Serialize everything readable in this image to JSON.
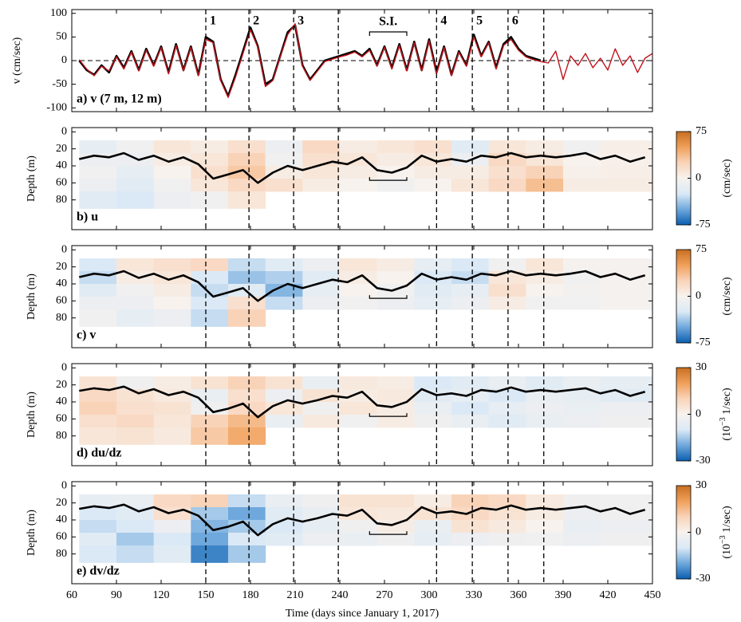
{
  "x_axis": {
    "xlim": [
      60,
      450
    ],
    "xticks": [
      60,
      90,
      120,
      150,
      180,
      210,
      240,
      270,
      300,
      330,
      360,
      390,
      420,
      450
    ],
    "xlabel": "Time (days since January 1, 2017)"
  },
  "events": [
    {
      "x": 150,
      "label": "1"
    },
    {
      "x": 179,
      "label": "2"
    },
    {
      "x": 209,
      "label": "3"
    },
    {
      "x": 239
    },
    {
      "x": 305,
      "label": "4"
    },
    {
      "x": 329,
      "label": "5"
    },
    {
      "x": 353,
      "label": "6"
    },
    {
      "x": 377
    }
  ],
  "si": {
    "label": "S.I.",
    "x": [
      260,
      285
    ],
    "depth": 57
  },
  "colormap": [
    "#0b5fb0",
    "#6fa8dc",
    "#dbe9f6",
    "#f7f2ee",
    "#f9d3b8",
    "#f0a05a",
    "#c86f22"
  ],
  "chart_data": [
    {
      "type": "line",
      "panel_label": "a) v (7 m, 12 m)",
      "ylabel": "v (cm/sec)",
      "ylim": [
        -108,
        108
      ],
      "yticks": [
        -100,
        -50,
        0,
        50,
        100
      ],
      "zero_line": true,
      "series": [
        {
          "color": "#000000",
          "x": [
            65,
            70,
            75,
            80,
            85,
            90,
            95,
            100,
            105,
            110,
            115,
            120,
            125,
            130,
            135,
            140,
            145,
            150,
            155,
            160,
            165,
            170,
            175,
            180,
            185,
            190,
            195,
            200,
            205,
            210,
            215,
            220,
            225,
            230,
            235,
            240,
            245,
            250,
            255,
            260,
            265,
            270,
            275,
            280,
            285,
            290,
            295,
            300,
            305,
            310,
            315,
            320,
            325,
            330,
            335,
            340,
            345,
            350,
            355,
            360,
            365,
            370,
            375
          ],
          "values": [
            0,
            -20,
            -30,
            -10,
            -25,
            10,
            -15,
            20,
            -20,
            25,
            -10,
            30,
            -25,
            35,
            -20,
            30,
            -30,
            50,
            40,
            -40,
            -75,
            -30,
            20,
            70,
            30,
            -50,
            -40,
            10,
            60,
            75,
            -10,
            -40,
            -20,
            0,
            5,
            10,
            15,
            20,
            10,
            25,
            -10,
            30,
            -15,
            35,
            -20,
            40,
            -20,
            45,
            -25,
            30,
            -30,
            20,
            -10,
            55,
            10,
            40,
            -15,
            35,
            50,
            25,
            10,
            5,
            0
          ]
        },
        {
          "color": "#c0141c",
          "x": [
            65,
            70,
            75,
            80,
            85,
            90,
            95,
            100,
            105,
            110,
            115,
            120,
            125,
            130,
            135,
            140,
            145,
            150,
            155,
            160,
            165,
            170,
            175,
            180,
            185,
            190,
            195,
            200,
            205,
            210,
            215,
            220,
            225,
            230,
            235,
            240,
            245,
            250,
            255,
            260,
            265,
            270,
            275,
            280,
            285,
            290,
            295,
            300,
            305,
            310,
            315,
            320,
            325,
            330,
            335,
            340,
            345,
            350,
            355,
            360,
            365,
            370,
            375,
            380,
            385,
            390,
            395,
            400,
            405,
            410,
            415,
            420,
            425,
            430,
            435,
            440,
            445,
            450
          ],
          "values": [
            2,
            -18,
            -32,
            -12,
            -22,
            8,
            -18,
            18,
            -22,
            22,
            -12,
            28,
            -28,
            32,
            -22,
            28,
            -32,
            45,
            38,
            -42,
            -78,
            -35,
            15,
            65,
            28,
            -55,
            -42,
            8,
            55,
            78,
            -12,
            -42,
            -22,
            -2,
            3,
            8,
            12,
            18,
            8,
            22,
            -12,
            28,
            -18,
            32,
            -22,
            38,
            -22,
            42,
            -28,
            28,
            -32,
            18,
            -12,
            50,
            8,
            38,
            -18,
            32,
            45,
            22,
            8,
            2,
            -2,
            -5,
            20,
            -40,
            10,
            -10,
            15,
            -15,
            5,
            -20,
            25,
            -10,
            10,
            -25,
            5,
            15
          ]
        }
      ]
    },
    {
      "type": "heatmap",
      "panel_label": "b) u",
      "ylabel": "Depth (m)",
      "ylim": [
        115,
        -5
      ],
      "yticks": [
        0,
        20,
        40,
        60,
        80
      ],
      "x_edges": [
        65,
        90,
        115,
        140,
        165,
        190,
        215,
        240,
        265,
        290,
        315,
        340,
        365,
        390,
        415,
        450
      ],
      "y_edges": [
        10,
        25,
        40,
        55,
        70,
        90
      ],
      "z": [
        [
          -15,
          -5,
          10,
          5,
          15,
          -10,
          20,
          5,
          10,
          15,
          -20,
          10,
          5,
          -5,
          3
        ],
        [
          -10,
          -10,
          5,
          10,
          25,
          -5,
          15,
          10,
          5,
          10,
          -10,
          20,
          10,
          0,
          2
        ],
        [
          -5,
          -15,
          0,
          15,
          30,
          5,
          10,
          5,
          0,
          5,
          5,
          15,
          25,
          2,
          3
        ],
        [
          -10,
          -20,
          -5,
          10,
          20,
          15,
          5,
          0,
          -5,
          0,
          10,
          20,
          35,
          5,
          5
        ],
        [
          -20,
          -25,
          -10,
          -5,
          10,
          null,
          null,
          null,
          null,
          null,
          null,
          null,
          null,
          null,
          null
        ]
      ],
      "clim": [
        -75,
        75
      ],
      "cticks": [
        -75,
        0,
        75
      ],
      "clabel": [
        "(cm/sec)"
      ],
      "line": {
        "color": "#000000",
        "x": [
          65,
          75,
          85,
          95,
          105,
          115,
          125,
          135,
          145,
          155,
          165,
          175,
          185,
          195,
          205,
          215,
          225,
          235,
          245,
          255,
          265,
          275,
          285,
          295,
          305,
          315,
          325,
          335,
          345,
          355,
          365,
          375,
          385,
          395,
          405,
          415,
          425,
          435,
          445
        ],
        "values": [
          32,
          28,
          30,
          25,
          33,
          28,
          35,
          30,
          38,
          55,
          50,
          45,
          60,
          48,
          40,
          45,
          40,
          35,
          38,
          30,
          45,
          48,
          42,
          28,
          35,
          32,
          35,
          28,
          30,
          25,
          30,
          28,
          30,
          28,
          25,
          32,
          28,
          35,
          30
        ]
      }
    },
    {
      "type": "heatmap",
      "panel_label": "c) v",
      "ylabel": "Depth (m)",
      "ylim": [
        115,
        -5
      ],
      "yticks": [
        0,
        20,
        40,
        60,
        80
      ],
      "x_edges": [
        65,
        90,
        115,
        140,
        165,
        190,
        215,
        240,
        265,
        290,
        315,
        340,
        365,
        390,
        415,
        450
      ],
      "y_edges": [
        10,
        25,
        40,
        55,
        70,
        90
      ],
      "z": [
        [
          -25,
          10,
          15,
          20,
          -30,
          -20,
          -10,
          10,
          5,
          -15,
          -25,
          -5,
          10,
          -3,
          -2
        ],
        [
          -30,
          5,
          10,
          -25,
          -40,
          -35,
          -20,
          5,
          0,
          -25,
          -30,
          10,
          5,
          -5,
          -3
        ],
        [
          -20,
          -5,
          5,
          -30,
          -20,
          -45,
          -15,
          0,
          -5,
          -20,
          -15,
          15,
          0,
          -4,
          -2
        ],
        [
          -10,
          -10,
          0,
          -25,
          15,
          -30,
          -10,
          -5,
          -10,
          -15,
          -10,
          5,
          -5,
          -5,
          -3
        ],
        [
          -5,
          -15,
          -10,
          -30,
          25,
          null,
          null,
          null,
          null,
          null,
          null,
          null,
          null,
          null,
          null
        ]
      ],
      "clim": [
        -75,
        75
      ],
      "cticks": [
        -75,
        0,
        75
      ],
      "clabel": [
        "(cm/sec)"
      ],
      "line": {
        "color": "#000000",
        "x": [
          65,
          75,
          85,
          95,
          105,
          115,
          125,
          135,
          145,
          155,
          165,
          175,
          185,
          195,
          205,
          215,
          225,
          235,
          245,
          255,
          265,
          275,
          285,
          295,
          305,
          315,
          325,
          335,
          345,
          355,
          365,
          375,
          385,
          395,
          405,
          415,
          425,
          435,
          445
        ],
        "values": [
          32,
          28,
          30,
          25,
          33,
          28,
          35,
          30,
          38,
          55,
          50,
          45,
          60,
          48,
          40,
          45,
          40,
          35,
          38,
          30,
          45,
          48,
          42,
          28,
          35,
          32,
          35,
          28,
          30,
          25,
          30,
          28,
          30,
          28,
          25,
          32,
          28,
          35,
          30
        ]
      }
    },
    {
      "type": "heatmap",
      "panel_label": "d) du/dz",
      "ylabel": "Depth (m)",
      "ylim": [
        115,
        -5
      ],
      "yticks": [
        0,
        20,
        40,
        60,
        80
      ],
      "x_edges": [
        65,
        90,
        115,
        140,
        165,
        190,
        215,
        240,
        265,
        290,
        315,
        340,
        365,
        390,
        415,
        450
      ],
      "y_edges": [
        10,
        25,
        40,
        55,
        70,
        90
      ],
      "z": [
        [
          5,
          -3,
          2,
          5,
          10,
          5,
          -5,
          3,
          2,
          -10,
          -8,
          -5,
          -8,
          -5,
          -6
        ],
        [
          8,
          5,
          3,
          -5,
          6,
          -4,
          5,
          2,
          3,
          -8,
          -6,
          -10,
          -5,
          -6,
          -8
        ],
        [
          10,
          6,
          5,
          -3,
          8,
          4,
          -3,
          4,
          2,
          -5,
          -10,
          -6,
          -4,
          -5,
          -4
        ],
        [
          6,
          8,
          4,
          10,
          15,
          -5,
          3,
          -2,
          2,
          -3,
          -5,
          -8,
          -5,
          -4,
          -3
        ],
        [
          4,
          5,
          3,
          12,
          18,
          null,
          null,
          null,
          null,
          null,
          null,
          null,
          null,
          null,
          null
        ]
      ],
      "clim": [
        -30,
        30
      ],
      "cticks": [
        -30,
        0,
        30
      ],
      "clabel": [
        "(10",
        "−3",
        " 1/sec)"
      ],
      "line": {
        "color": "#000000",
        "x": [
          65,
          75,
          85,
          95,
          105,
          115,
          125,
          135,
          145,
          155,
          165,
          175,
          185,
          195,
          205,
          215,
          225,
          235,
          245,
          255,
          265,
          275,
          285,
          295,
          305,
          315,
          325,
          335,
          345,
          355,
          365,
          375,
          385,
          395,
          405,
          415,
          425,
          435,
          445
        ],
        "values": [
          27,
          24,
          26,
          22,
          30,
          25,
          32,
          28,
          35,
          52,
          48,
          42,
          58,
          45,
          38,
          42,
          38,
          33,
          35,
          28,
          44,
          46,
          40,
          25,
          32,
          30,
          33,
          26,
          28,
          23,
          28,
          26,
          28,
          26,
          24,
          30,
          26,
          33,
          28
        ]
      }
    },
    {
      "type": "heatmap",
      "panel_label": "e) dv/dz",
      "ylabel": "Depth (m)",
      "ylim": [
        115,
        -5
      ],
      "yticks": [
        0,
        20,
        40,
        60,
        80
      ],
      "x_edges": [
        65,
        90,
        115,
        140,
        165,
        190,
        215,
        240,
        265,
        290,
        315,
        340,
        365,
        390,
        415,
        450
      ],
      "y_edges": [
        10,
        25,
        40,
        55,
        70,
        90
      ],
      "z": [
        [
          -6,
          -5,
          8,
          10,
          -12,
          -5,
          -3,
          5,
          5,
          2,
          10,
          8,
          3,
          -3,
          -2
        ],
        [
          -10,
          -8,
          6,
          -15,
          -20,
          -8,
          -5,
          4,
          3,
          5,
          8,
          5,
          2,
          -4,
          -3
        ],
        [
          -12,
          -10,
          -4,
          -18,
          -15,
          -10,
          -6,
          -3,
          2,
          -5,
          5,
          3,
          0,
          -5,
          -4
        ],
        [
          -8,
          -15,
          -10,
          -20,
          -10,
          -8,
          -4,
          -5,
          -3,
          -6,
          -4,
          -3,
          -2,
          -4,
          -3
        ],
        [
          -10,
          -12,
          -8,
          -25,
          -15,
          null,
          null,
          null,
          null,
          null,
          null,
          null,
          null,
          null,
          null
        ]
      ],
      "clim": [
        -30,
        30
      ],
      "cticks": [
        -30,
        0,
        30
      ],
      "clabel": [
        "(10",
        "−3",
        " 1/sec)"
      ],
      "line": {
        "color": "#000000",
        "x": [
          65,
          75,
          85,
          95,
          105,
          115,
          125,
          135,
          145,
          155,
          165,
          175,
          185,
          195,
          205,
          215,
          225,
          235,
          245,
          255,
          265,
          275,
          285,
          295,
          305,
          315,
          325,
          335,
          345,
          355,
          365,
          375,
          385,
          395,
          405,
          415,
          425,
          435,
          445
        ],
        "values": [
          27,
          24,
          26,
          22,
          30,
          25,
          32,
          28,
          35,
          52,
          48,
          42,
          58,
          45,
          38,
          42,
          38,
          33,
          35,
          28,
          44,
          46,
          40,
          25,
          32,
          30,
          33,
          26,
          28,
          23,
          28,
          26,
          28,
          26,
          24,
          30,
          26,
          33,
          28
        ]
      }
    }
  ]
}
